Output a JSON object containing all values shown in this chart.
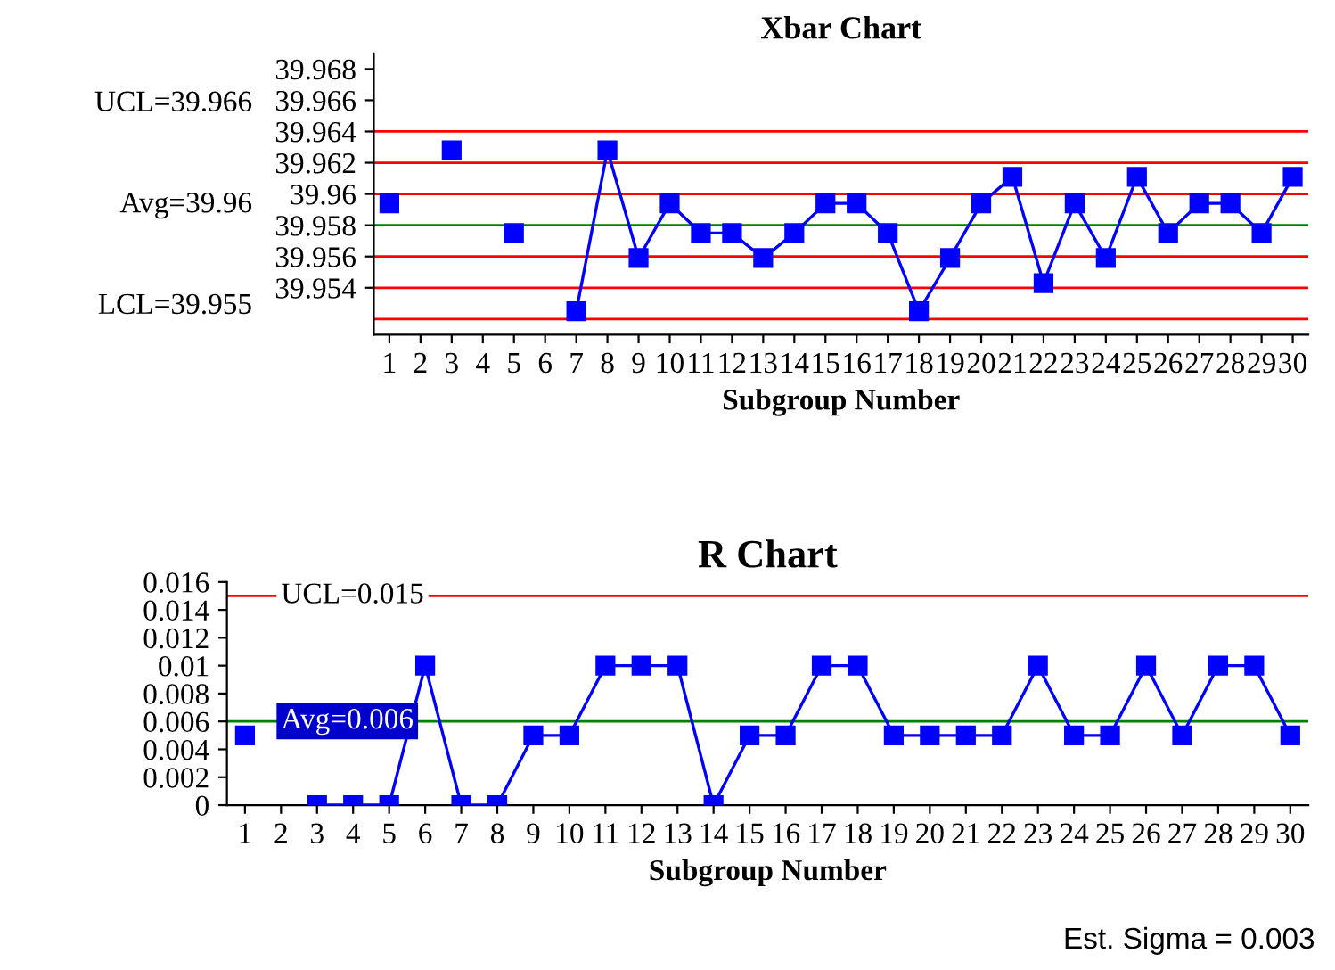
{
  "chart_data": [
    {
      "type": "line",
      "title": "Xbar Chart",
      "xlabel": "Subgroup Number",
      "categories": [
        "1",
        "2",
        "3",
        "4",
        "5",
        "6",
        "7",
        "8",
        "9",
        "10",
        "11",
        "12",
        "13",
        "14",
        "15",
        "16",
        "17",
        "18",
        "19",
        "20",
        "21",
        "22",
        "23",
        "24",
        "25",
        "26",
        "27",
        "28",
        "29",
        "30"
      ],
      "series": [
        {
          "color": "#0000ff",
          "values": [
            39.9594,
            null,
            39.9628,
            null,
            39.9575,
            null,
            39.9525,
            39.9628,
            39.9559,
            39.9594,
            39.9575,
            39.9575,
            39.9559,
            39.9575,
            39.9594,
            39.9594,
            39.9575,
            39.9525,
            39.9559,
            39.9594,
            39.9611,
            39.9543,
            39.9594,
            39.9559,
            39.9611,
            39.9575,
            39.9594,
            39.9594,
            39.9575,
            39.9611
          ]
        }
      ],
      "ylim": [
        39.951,
        39.969
      ],
      "yticks": [
        39.954,
        39.956,
        39.958,
        39.96,
        39.962,
        39.964,
        39.966,
        39.968
      ],
      "ref_lines": [
        {
          "axis": "y",
          "value": 39.964,
          "color": "#ff0000"
        },
        {
          "axis": "y",
          "value": 39.962,
          "color": "#ff0000"
        },
        {
          "axis": "y",
          "value": 39.96,
          "color": "#ff0000"
        },
        {
          "axis": "y",
          "value": 39.958,
          "color": "#008000"
        },
        {
          "axis": "y",
          "value": 39.956,
          "color": "#ff0000"
        },
        {
          "axis": "y",
          "value": 39.954,
          "color": "#ff0000"
        },
        {
          "axis": "y",
          "value": 39.952,
          "color": "#ff0000"
        }
      ],
      "annotations": [
        "UCL=39.966",
        "Avg=39.96",
        "LCL=39.955"
      ],
      "marker": "square",
      "grid": false,
      "legend": false
    },
    {
      "type": "line",
      "title": "R Chart",
      "xlabel": "Subgroup Number",
      "categories": [
        "1",
        "2",
        "3",
        "4",
        "5",
        "6",
        "7",
        "8",
        "9",
        "10",
        "11",
        "12",
        "13",
        "14",
        "15",
        "16",
        "17",
        "18",
        "19",
        "20",
        "21",
        "22",
        "23",
        "24",
        "25",
        "26",
        "27",
        "28",
        "29",
        "30"
      ],
      "series": [
        {
          "color": "#0000ff",
          "values": [
            0.005,
            null,
            0,
            0,
            0,
            0.01,
            0,
            0,
            0.005,
            0.005,
            0.01,
            0.01,
            0.01,
            0,
            0.005,
            0.005,
            0.01,
            0.01,
            0.005,
            0.005,
            0.005,
            0.005,
            0.01,
            0.005,
            0.005,
            0.01,
            0.005,
            0.01,
            0.01,
            0.005
          ]
        }
      ],
      "ylim": [
        0,
        0.016
      ],
      "yticks": [
        0,
        0.002,
        0.004,
        0.006,
        0.008,
        0.01,
        0.012,
        0.014,
        0.016
      ],
      "ref_lines": [
        {
          "axis": "y",
          "value": 0.015,
          "color": "#ff0000",
          "label": "UCL=0.015"
        },
        {
          "axis": "y",
          "value": 0.006,
          "color": "#008000",
          "label": "Avg=0.006"
        }
      ],
      "annotations": [
        "Est. Sigma = 0.003"
      ],
      "marker": "square",
      "grid": false,
      "legend": false
    }
  ]
}
